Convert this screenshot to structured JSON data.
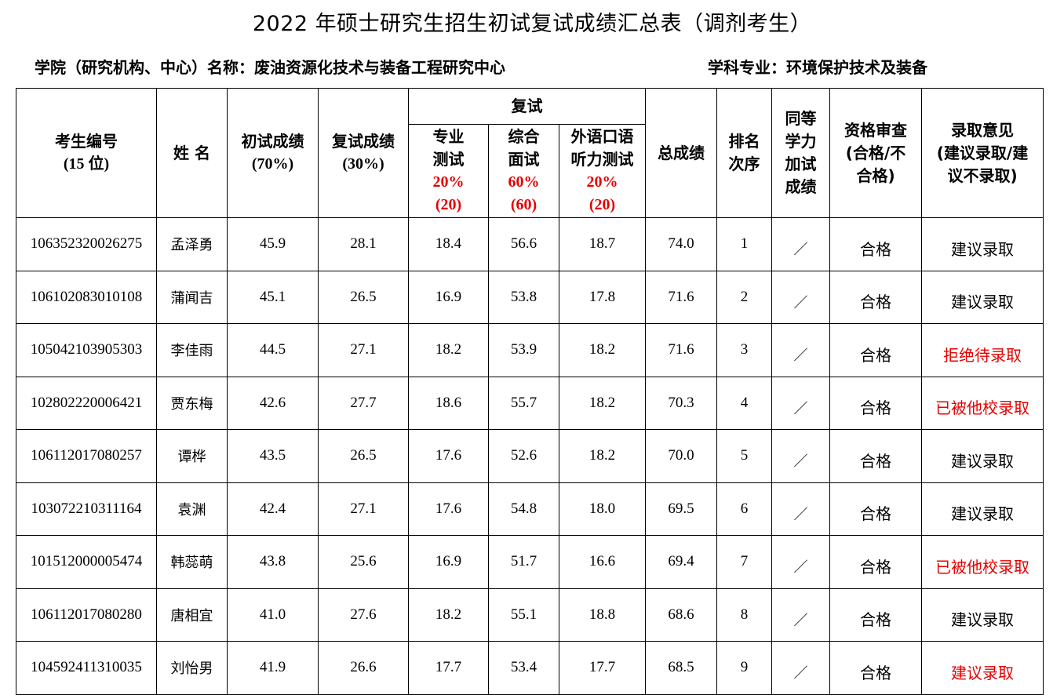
{
  "title": "2022 年硕士研究生招生初试复试成绩汇总表（调剂考生）",
  "college_label": "学院（研究机构、中心）名称：废油资源化技术与装备工程研究中心",
  "major_label": "学科专业：环境保护技术及装备",
  "headers": {
    "id_l1": "考生编号",
    "id_l2": "(15 位)",
    "name": "姓 名",
    "initial_l1": "初试成绩",
    "initial_l2": "(70%)",
    "retest_l1": "复试成绩",
    "retest_l2": "(30%)",
    "retest_group": "复试",
    "prof_l1": "专业",
    "prof_l2": "测试",
    "prof_pct": "20%",
    "prof_max": "(20)",
    "comp_l1": "综合",
    "comp_l2": "面试",
    "comp_pct": "60%",
    "comp_max": "(60)",
    "lang_l1": "外语口语",
    "lang_l2": "听力测试",
    "lang_pct": "20%",
    "lang_max": "(20)",
    "total": "总成绩",
    "rank_l1": "排名",
    "rank_l2": "次序",
    "equiv_l1": "同等",
    "equiv_l2": "学力",
    "equiv_l3": "加试",
    "equiv_l4": "成绩",
    "qual_l1": "资格审查",
    "qual_l2": "(合格/不",
    "qual_l3": "合格)",
    "adm_l1": "录取意见",
    "adm_l2": "(建议录取/建",
    "adm_l3": "议不录取)"
  },
  "rows": [
    {
      "id": "106352320026275",
      "name": "孟泽勇",
      "initial": "45.9",
      "retest": "28.1",
      "prof": "18.4",
      "comp": "56.6",
      "lang": "18.7",
      "total": "74.0",
      "rank": "1",
      "equiv": "／",
      "qual": "合格",
      "opinion": "建议录取",
      "opinion_color": "#000000"
    },
    {
      "id": "106102083010108",
      "name": "蒲闻吉",
      "initial": "45.1",
      "retest": "26.5",
      "prof": "16.9",
      "comp": "53.8",
      "lang": "17.8",
      "total": "71.6",
      "rank": "2",
      "equiv": "／",
      "qual": "合格",
      "opinion": "建议录取",
      "opinion_color": "#000000"
    },
    {
      "id": "105042103905303",
      "name": "李佳雨",
      "initial": "44.5",
      "retest": "27.1",
      "prof": "18.2",
      "comp": "53.9",
      "lang": "18.2",
      "total": "71.6",
      "rank": "3",
      "equiv": "／",
      "qual": "合格",
      "opinion": "拒绝待录取",
      "opinion_color": "#e60000"
    },
    {
      "id": "102802220006421",
      "name": "贾东梅",
      "initial": "42.6",
      "retest": "27.7",
      "prof": "18.6",
      "comp": "55.7",
      "lang": "18.2",
      "total": "70.3",
      "rank": "4",
      "equiv": "／",
      "qual": "合格",
      "opinion": "已被他校录取",
      "opinion_color": "#e60000"
    },
    {
      "id": "106112017080257",
      "name": "谭桦",
      "initial": "43.5",
      "retest": "26.5",
      "prof": "17.6",
      "comp": "52.6",
      "lang": "18.2",
      "total": "70.0",
      "rank": "5",
      "equiv": "／",
      "qual": "合格",
      "opinion": "建议录取",
      "opinion_color": "#000000"
    },
    {
      "id": "103072210311164",
      "name": "袁渊",
      "initial": "42.4",
      "retest": "27.1",
      "prof": "17.6",
      "comp": "54.8",
      "lang": "18.0",
      "total": "69.5",
      "rank": "6",
      "equiv": "／",
      "qual": "合格",
      "opinion": "建议录取",
      "opinion_color": "#000000"
    },
    {
      "id": "101512000005474",
      "name": "韩蕊萌",
      "initial": "43.8",
      "retest": "25.6",
      "prof": "16.9",
      "comp": "51.7",
      "lang": "16.6",
      "total": "69.4",
      "rank": "7",
      "equiv": "／",
      "qual": "合格",
      "opinion": "已被他校录取",
      "opinion_color": "#e60000"
    },
    {
      "id": "106112017080280",
      "name": "唐相宜",
      "initial": "41.0",
      "retest": "27.6",
      "prof": "18.2",
      "comp": "55.1",
      "lang": "18.8",
      "total": "68.6",
      "rank": "8",
      "equiv": "／",
      "qual": "合格",
      "opinion": "建议录取",
      "opinion_color": "#000000"
    },
    {
      "id": "104592411310035",
      "name": "刘怡男",
      "initial": "41.9",
      "retest": "26.6",
      "prof": "17.7",
      "comp": "53.4",
      "lang": "17.7",
      "total": "68.5",
      "rank": "9",
      "equiv": "／",
      "qual": "合格",
      "opinion": "建议录取",
      "opinion_color": "#e60000"
    }
  ]
}
